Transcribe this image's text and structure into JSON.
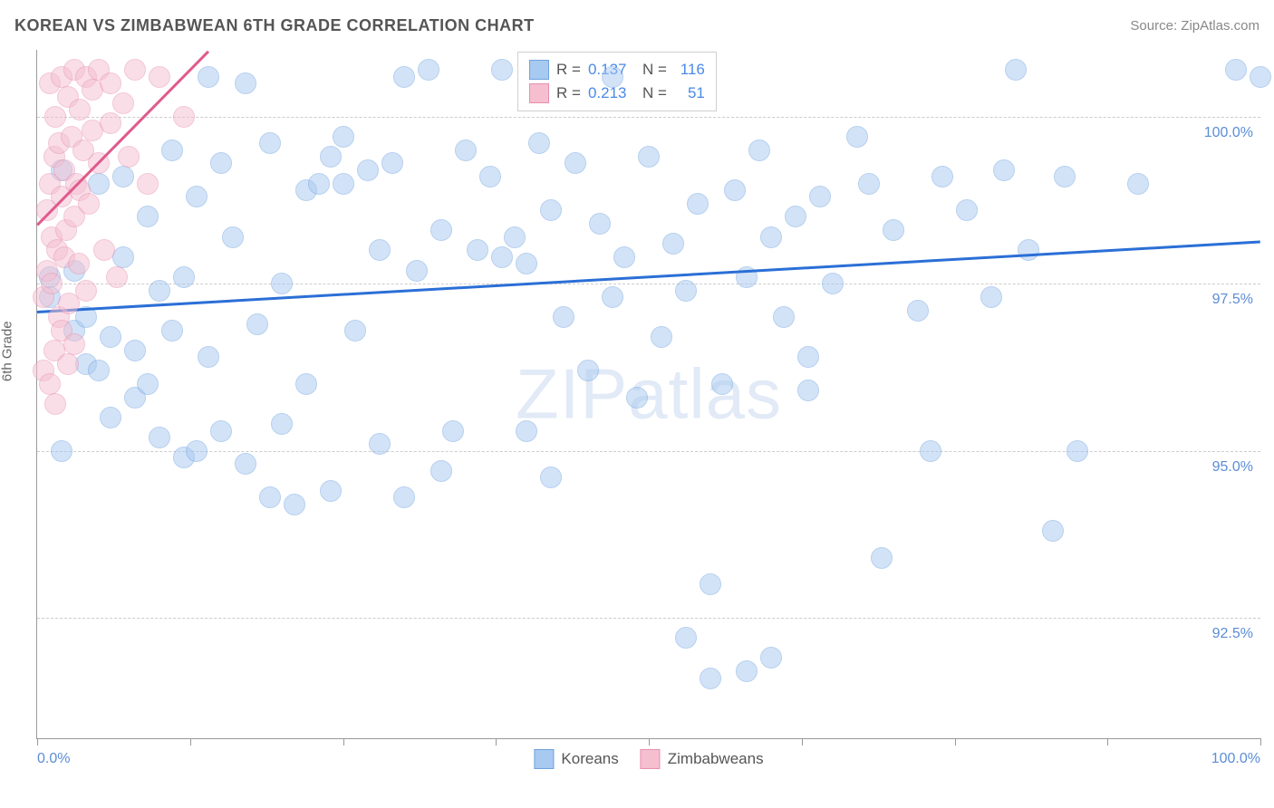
{
  "header": {
    "title": "KOREAN VS ZIMBABWEAN 6TH GRADE CORRELATION CHART",
    "source_label": "Source:",
    "source_name": "ZipAtlas.com"
  },
  "ylabel": "6th Grade",
  "watermark": "ZIPatlas",
  "chart": {
    "type": "scatter",
    "xlim": [
      0,
      100
    ],
    "ylim": [
      90.7,
      101.0
    ],
    "yticks": [
      92.5,
      95.0,
      97.5,
      100.0
    ],
    "ytick_labels": [
      "92.5%",
      "95.0%",
      "97.5%",
      "100.0%"
    ],
    "xticks": [
      0,
      12.5,
      25,
      37.5,
      50,
      62.5,
      75,
      87.5,
      100
    ],
    "xtick_labels_visible": {
      "0": "0.0%",
      "100": "100.0%"
    },
    "grid_color": "#cccccc",
    "axis_color": "#999999",
    "background_color": "#ffffff",
    "label_color": "#5b8dd6",
    "point_radius": 11,
    "point_opacity": 0.5,
    "series": [
      {
        "name": "Koreans",
        "color_fill": "#a8c9f0",
        "color_stroke": "#6fa3e0",
        "R": "0.137",
        "N": "116",
        "trend": {
          "x1": 0,
          "y1": 97.1,
          "x2": 100,
          "y2": 98.15,
          "color": "#2b6fd6",
          "width": 2.5
        },
        "points": [
          [
            1,
            97.6
          ],
          [
            1,
            97.3
          ],
          [
            2,
            99.2
          ],
          [
            2,
            95.0
          ],
          [
            3,
            97.7
          ],
          [
            3,
            96.8
          ],
          [
            4,
            96.3
          ],
          [
            4,
            97.0
          ],
          [
            5,
            99.0
          ],
          [
            5,
            96.2
          ],
          [
            6,
            96.7
          ],
          [
            6,
            95.5
          ],
          [
            7,
            97.9
          ],
          [
            7,
            99.1
          ],
          [
            8,
            96.5
          ],
          [
            8,
            95.8
          ],
          [
            9,
            98.5
          ],
          [
            9,
            96.0
          ],
          [
            10,
            95.2
          ],
          [
            10,
            97.4
          ],
          [
            11,
            99.5
          ],
          [
            11,
            96.8
          ],
          [
            12,
            94.9
          ],
          [
            12,
            97.6
          ],
          [
            13,
            95.0
          ],
          [
            13,
            98.8
          ],
          [
            14,
            100.6
          ],
          [
            14,
            96.4
          ],
          [
            15,
            95.3
          ],
          [
            15,
            99.3
          ],
          [
            16,
            98.2
          ],
          [
            17,
            100.5
          ],
          [
            17,
            94.8
          ],
          [
            18,
            96.9
          ],
          [
            19,
            99.6
          ],
          [
            19,
            94.3
          ],
          [
            20,
            97.5
          ],
          [
            20,
            95.4
          ],
          [
            21,
            94.2
          ],
          [
            22,
            98.9
          ],
          [
            22,
            96.0
          ],
          [
            23,
            99.0
          ],
          [
            24,
            99.4
          ],
          [
            24,
            94.4
          ],
          [
            25,
            99.7
          ],
          [
            25,
            99.0
          ],
          [
            26,
            96.8
          ],
          [
            27,
            99.2
          ],
          [
            28,
            98.0
          ],
          [
            28,
            95.1
          ],
          [
            29,
            99.3
          ],
          [
            30,
            100.6
          ],
          [
            30,
            94.3
          ],
          [
            31,
            97.7
          ],
          [
            32,
            100.7
          ],
          [
            33,
            94.7
          ],
          [
            33,
            98.3
          ],
          [
            34,
            95.3
          ],
          [
            35,
            99.5
          ],
          [
            36,
            98.0
          ],
          [
            37,
            99.1
          ],
          [
            38,
            97.9
          ],
          [
            38,
            100.7
          ],
          [
            39,
            98.2
          ],
          [
            40,
            95.3
          ],
          [
            40,
            97.8
          ],
          [
            41,
            99.6
          ],
          [
            42,
            98.6
          ],
          [
            42,
            94.6
          ],
          [
            43,
            97.0
          ],
          [
            44,
            99.3
          ],
          [
            45,
            96.2
          ],
          [
            46,
            98.4
          ],
          [
            47,
            100.6
          ],
          [
            47,
            97.3
          ],
          [
            48,
            97.9
          ],
          [
            49,
            95.8
          ],
          [
            50,
            99.4
          ],
          [
            51,
            96.7
          ],
          [
            52,
            98.1
          ],
          [
            53,
            97.4
          ],
          [
            53,
            92.2
          ],
          [
            54,
            98.7
          ],
          [
            55,
            93.0
          ],
          [
            55,
            91.6
          ],
          [
            56,
            96.0
          ],
          [
            57,
            98.9
          ],
          [
            58,
            91.7
          ],
          [
            58,
            97.6
          ],
          [
            59,
            99.5
          ],
          [
            60,
            98.2
          ],
          [
            60,
            91.9
          ],
          [
            61,
            97.0
          ],
          [
            62,
            98.5
          ],
          [
            63,
            96.4
          ],
          [
            63,
            95.9
          ],
          [
            64,
            98.8
          ],
          [
            65,
            97.5
          ],
          [
            67,
            99.7
          ],
          [
            68,
            99.0
          ],
          [
            69,
            93.4
          ],
          [
            70,
            98.3
          ],
          [
            72,
            97.1
          ],
          [
            73,
            95.0
          ],
          [
            74,
            99.1
          ],
          [
            76,
            98.6
          ],
          [
            78,
            97.3
          ],
          [
            79,
            99.2
          ],
          [
            80,
            100.7
          ],
          [
            81,
            98.0
          ],
          [
            83,
            93.8
          ],
          [
            84,
            99.1
          ],
          [
            85,
            95.0
          ],
          [
            90,
            99.0
          ],
          [
            98,
            100.7
          ],
          [
            100,
            100.6
          ]
        ]
      },
      {
        "name": "Zimbabweans",
        "color_fill": "#f5bfd0",
        "color_stroke": "#e88fb0",
        "R": "0.213",
        "N": "51",
        "trend": {
          "x1": 0,
          "y1": 98.4,
          "x2": 14,
          "y2": 101.0,
          "color": "#e05a8c",
          "width": 2.5
        },
        "points": [
          [
            0.5,
            96.2
          ],
          [
            0.5,
            97.3
          ],
          [
            0.8,
            97.7
          ],
          [
            0.8,
            98.6
          ],
          [
            1,
            99.0
          ],
          [
            1,
            96.0
          ],
          [
            1,
            100.5
          ],
          [
            1.2,
            97.5
          ],
          [
            1.2,
            98.2
          ],
          [
            1.4,
            99.4
          ],
          [
            1.4,
            96.5
          ],
          [
            1.5,
            95.7
          ],
          [
            1.5,
            100.0
          ],
          [
            1.6,
            98.0
          ],
          [
            1.8,
            97.0
          ],
          [
            1.8,
            99.6
          ],
          [
            2,
            98.8
          ],
          [
            2,
            96.8
          ],
          [
            2,
            100.6
          ],
          [
            2.2,
            97.9
          ],
          [
            2.2,
            99.2
          ],
          [
            2.4,
            98.3
          ],
          [
            2.5,
            100.3
          ],
          [
            2.5,
            96.3
          ],
          [
            2.6,
            97.2
          ],
          [
            2.8,
            99.7
          ],
          [
            3,
            98.5
          ],
          [
            3,
            100.7
          ],
          [
            3,
            96.6
          ],
          [
            3.2,
            99.0
          ],
          [
            3.4,
            97.8
          ],
          [
            3.5,
            100.1
          ],
          [
            3.5,
            98.9
          ],
          [
            3.8,
            99.5
          ],
          [
            4,
            100.6
          ],
          [
            4,
            97.4
          ],
          [
            4.2,
            98.7
          ],
          [
            4.5,
            99.8
          ],
          [
            4.5,
            100.4
          ],
          [
            5,
            99.3
          ],
          [
            5,
            100.7
          ],
          [
            5.5,
            98.0
          ],
          [
            6,
            99.9
          ],
          [
            6,
            100.5
          ],
          [
            6.5,
            97.6
          ],
          [
            7,
            100.2
          ],
          [
            7.5,
            99.4
          ],
          [
            8,
            100.7
          ],
          [
            9,
            99.0
          ],
          [
            10,
            100.6
          ],
          [
            12,
            100.0
          ]
        ]
      }
    ]
  },
  "legend_top": {
    "R_label": "R =",
    "N_label": "N ="
  },
  "legend_bottom": {
    "items": [
      "Koreans",
      "Zimbabweans"
    ]
  }
}
